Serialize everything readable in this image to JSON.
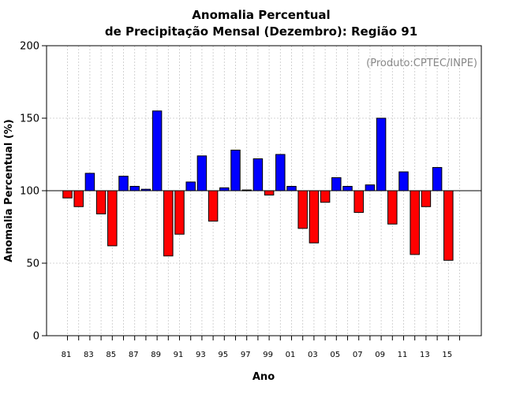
{
  "chart_data": {
    "type": "bar",
    "title_line1": "Anomalia Percentual",
    "title_line2": "de Precipitação Mensal (Dezembro): Região 91",
    "credit": "(Produto:CPTEC/INPE)",
    "xlabel": "Ano",
    "ylabel": "Anomalia Percentual (%)",
    "ylim": [
      0,
      200
    ],
    "yticks": [
      0,
      50,
      100,
      150,
      200
    ],
    "baseline": 100,
    "grid": true,
    "categories": [
      "81",
      "82",
      "83",
      "84",
      "85",
      "86",
      "87",
      "88",
      "89",
      "90",
      "91",
      "92",
      "93",
      "94",
      "95",
      "96",
      "97",
      "98",
      "99",
      "00",
      "01",
      "02",
      "03",
      "04",
      "05",
      "06",
      "07",
      "08",
      "09",
      "10",
      "11",
      "12",
      "13",
      "14",
      "15"
    ],
    "xtick_labels": [
      "81",
      "83",
      "85",
      "87",
      "89",
      "91",
      "93",
      "95",
      "97",
      "99",
      "01",
      "03",
      "05",
      "07",
      "09",
      "11",
      "13",
      "15"
    ],
    "values": [
      95,
      89,
      112,
      84,
      62,
      110,
      103,
      101,
      155,
      55,
      70,
      106,
      124,
      79,
      102,
      128,
      100.5,
      122,
      97,
      125,
      103,
      74,
      64,
      92,
      109,
      103,
      85,
      104,
      150,
      77,
      113,
      56,
      89,
      116,
      52
    ],
    "colors": {
      "above": "#0000ff",
      "below": "#ff0000"
    }
  }
}
